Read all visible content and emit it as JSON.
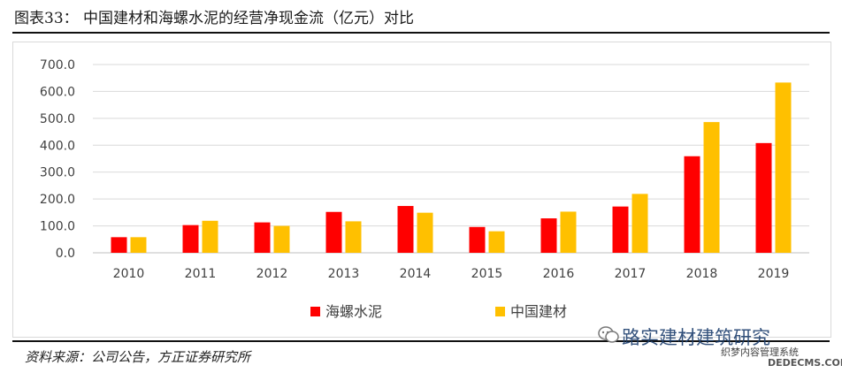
{
  "header": {
    "title": "图表33：  中国建材和海螺水泥的经营净现金流（亿元）对比"
  },
  "footer": {
    "source": "资料来源：公司公告，方正证券研究所"
  },
  "watermark": {
    "text": "路实建材建筑研究",
    "line2": "织梦内容管理系统",
    "line3": "DEDECMS.COM"
  },
  "chart_data": {
    "type": "bar",
    "categories": [
      "2010",
      "2011",
      "2012",
      "2013",
      "2014",
      "2015",
      "2016",
      "2017",
      "2018",
      "2019"
    ],
    "series": [
      {
        "name": "海螺水泥",
        "color": "#ff0000",
        "values": [
          58,
          103,
          113,
          152,
          174,
          96,
          128,
          172,
          359,
          408
        ]
      },
      {
        "name": "中国建材",
        "color": "#ffc000",
        "values": [
          58,
          119,
          100,
          117,
          149,
          80,
          153,
          219,
          486,
          633
        ]
      }
    ],
    "ylim": [
      0,
      700
    ],
    "yticks": [
      "0.0",
      "100.0",
      "200.0",
      "300.0",
      "400.0",
      "500.0",
      "600.0",
      "700.0"
    ],
    "grid": true,
    "legend": "bottom"
  }
}
